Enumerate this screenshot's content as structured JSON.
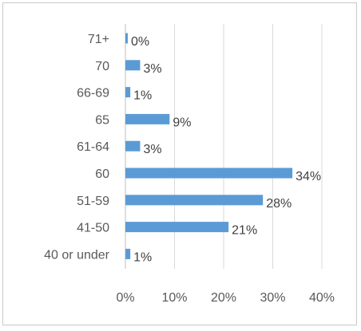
{
  "chart_data": {
    "type": "bar",
    "orientation": "horizontal",
    "categories": [
      "71+",
      "70",
      "66-69",
      "65",
      "61-64",
      "60",
      "51-59",
      "41-50",
      "40 or under"
    ],
    "values": [
      0,
      3,
      1,
      9,
      3,
      34,
      28,
      21,
      1
    ],
    "data_labels": [
      "0%",
      "3%",
      "1%",
      "9%",
      "3%",
      "34%",
      "28%",
      "21%",
      "1%"
    ],
    "x_ticks": [
      "0%",
      "10%",
      "20%",
      "30%",
      "40%"
    ],
    "xlim": [
      0,
      40
    ],
    "grid": true,
    "legend": "none",
    "title": "",
    "xlabel": "",
    "ylabel": "",
    "colors": {
      "bar": "#5b9bd5",
      "grid": "#d9d9d9",
      "text": "#595959",
      "frame": "#c9c9c9"
    }
  }
}
